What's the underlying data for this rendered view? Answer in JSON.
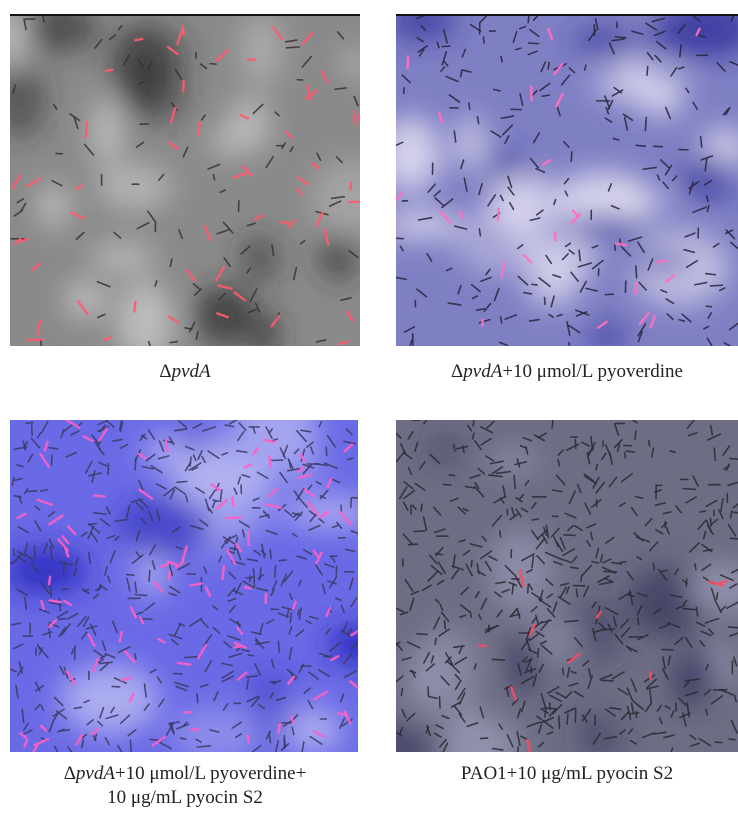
{
  "panels": [
    {
      "id": "a",
      "caption": {
        "prefix": "Δ",
        "gene": "pvdA",
        "suffix": "",
        "line2": ""
      },
      "colors": {
        "background": "#8a8a8a",
        "blotch": "#2a2a2a",
        "highlight": "#cfcfcf",
        "cell": "#3a3030",
        "fluorescent": "#ff5a70"
      }
    },
    {
      "id": "b",
      "caption": {
        "prefix": "Δ",
        "gene": "pvdA",
        "suffix": "+10 μmol/L pyoverdine",
        "line2": ""
      },
      "colors": {
        "background": "#7f7fc4",
        "blotch": "#2d2d9a",
        "highlight": "#e8e6f4",
        "cell": "#2b2440",
        "fluorescent": "#ff70c0"
      }
    },
    {
      "id": "c",
      "caption": {
        "prefix": "Δ",
        "gene": "pvdA",
        "suffix": "+10 μmol/L pyoverdine+",
        "line2": "10 μg/mL pyocin S2"
      },
      "colors": {
        "background": "#6a6ae6",
        "blotch": "#2222b8",
        "highlight": "#b9b9f2",
        "cell": "#3a3a66",
        "fluorescent": "#ff60c8"
      }
    },
    {
      "id": "d",
      "caption": {
        "prefix": "",
        "gene": "",
        "suffix": "PAO1+10 μg/mL pyocin S2",
        "line2": ""
      },
      "colors": {
        "background": "#6d6d84",
        "blotch": "#2f2f58",
        "highlight": "#9a9ab8",
        "cell": "#2b2b35",
        "fluorescent": "#ff4a60"
      }
    }
  ]
}
